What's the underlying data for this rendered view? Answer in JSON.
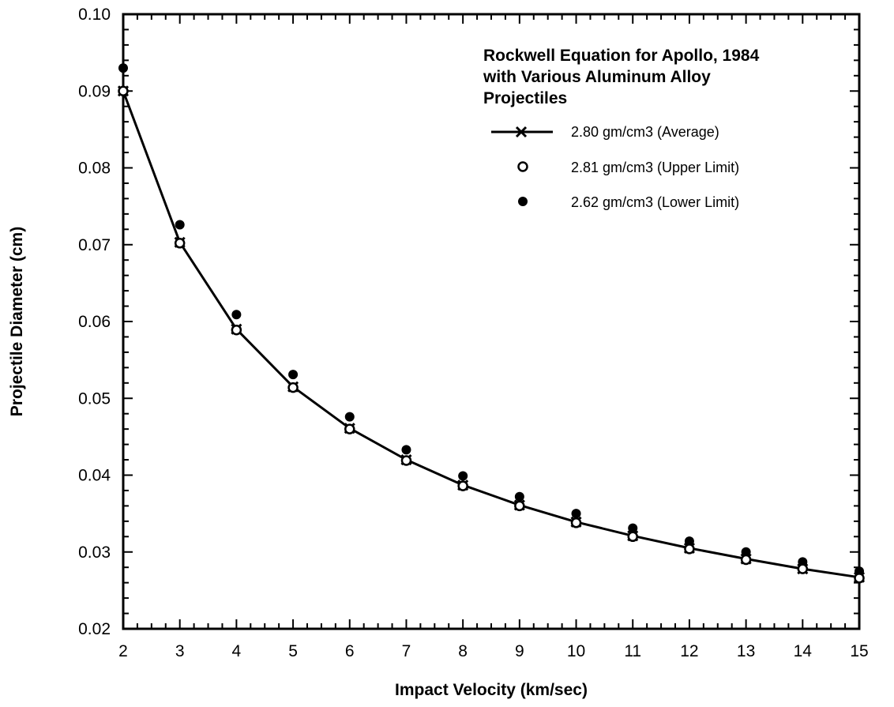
{
  "chart_data": {
    "type": "line",
    "title_lines": [
      "Rockwell Equation for Apollo, 1984",
      "with Various Aluminum Alloy",
      "Projectiles"
    ],
    "xlabel": "Impact Velocity (km/sec)",
    "ylabel": "Projectile Diameter (cm)",
    "xlim": [
      2,
      15
    ],
    "ylim": [
      0.02,
      0.1
    ],
    "x_ticks": [
      2,
      3,
      4,
      5,
      6,
      7,
      8,
      9,
      10,
      11,
      12,
      13,
      14,
      15
    ],
    "y_ticks": [
      "0.02",
      "0.03",
      "0.04",
      "0.05",
      "0.06",
      "0.07",
      "0.08",
      "0.09",
      "0.10"
    ],
    "grid": false,
    "legend_position": "top-right",
    "x": [
      2,
      3,
      4,
      5,
      6,
      7,
      8,
      9,
      10,
      11,
      12,
      13,
      14,
      15
    ],
    "series": [
      {
        "name": "2.80 gm/cm3 (Average)",
        "marker": "x-line",
        "values": [
          0.09,
          0.0703,
          0.059,
          0.0515,
          0.0461,
          0.042,
          0.0387,
          0.0361,
          0.0339,
          0.0321,
          0.0305,
          0.0291,
          0.0278,
          0.0267
        ]
      },
      {
        "name": "2.81 gm/cm3 (Upper Limit)",
        "marker": "open-circle",
        "values": [
          0.09,
          0.0702,
          0.0589,
          0.0514,
          0.046,
          0.0419,
          0.0386,
          0.036,
          0.0338,
          0.032,
          0.0304,
          0.029,
          0.0278,
          0.0266
        ]
      },
      {
        "name": "2.62 gm/cm3 (Lower Limit)",
        "marker": "filled-circle",
        "values": [
          0.093,
          0.0726,
          0.0609,
          0.0531,
          0.0476,
          0.0433,
          0.0399,
          0.0372,
          0.035,
          0.0331,
          0.0314,
          0.03,
          0.0287,
          0.0275
        ]
      }
    ]
  }
}
